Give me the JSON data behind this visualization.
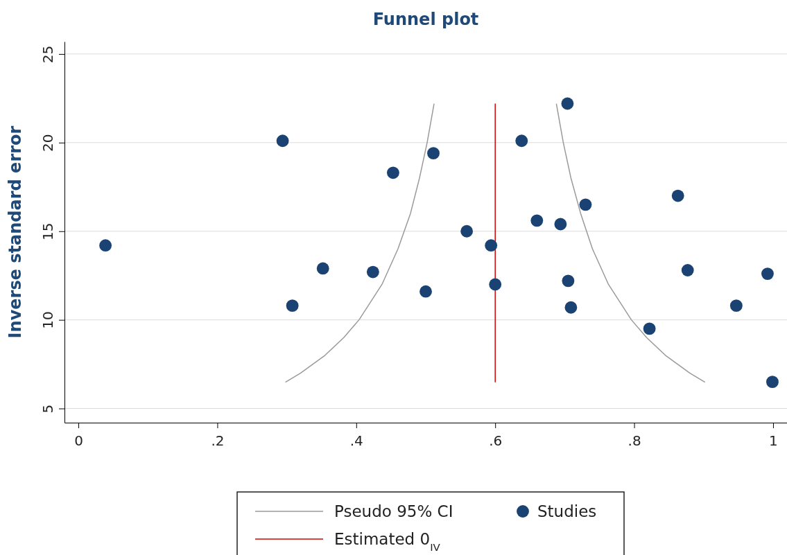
{
  "chart_data": {
    "type": "scatter",
    "title": "Funnel plot",
    "ylabel": "Inverse standard error",
    "xlim": [
      -0.02,
      1.02
    ],
    "ylim": [
      4.2,
      25.7
    ],
    "xticks": [
      0,
      {
        "value": 0.2,
        "label": ".2"
      },
      {
        "value": 0.4,
        "label": ".4"
      },
      {
        "value": 0.6,
        "label": ".6"
      },
      {
        "value": 0.8,
        "label": ".8"
      },
      1
    ],
    "yticks": [
      5,
      10,
      15,
      20,
      25
    ],
    "grid": "y",
    "legend": "bottom",
    "series": [
      {
        "type": "line",
        "marker": "none",
        "name": "Pseudo 95% CI",
        "color": "#9a9a9a",
        "x": [
          0.298,
          0.32,
          0.355,
          0.382,
          0.404,
          0.437,
          0.46,
          0.478,
          0.491,
          0.502,
          0.512,
          0.6,
          0.688,
          0.698,
          0.709,
          0.723,
          0.74,
          0.763,
          0.796,
          0.818,
          0.845,
          0.88,
          0.902
        ],
        "values": [
          6.48,
          7,
          8,
          9,
          10,
          12,
          14,
          16,
          18,
          20,
          22.2,
          null,
          22.2,
          20,
          18,
          16,
          14,
          12,
          10,
          9,
          8,
          7,
          6.48
        ]
      },
      {
        "type": "line",
        "marker": "none",
        "name": "Estimated 0$_{IV}$",
        "color": "#d40000",
        "x": [
          0.6,
          0.6
        ],
        "values": [
          6.48,
          22.2
        ]
      },
      {
        "marker": "circle",
        "name": "Studies",
        "color": "#1a4373",
        "x": [
          0.039,
          0.294,
          0.308,
          0.352,
          0.424,
          0.453,
          0.5,
          0.511,
          0.559,
          0.594,
          0.6,
          0.638,
          0.66,
          0.694,
          0.704,
          0.705,
          0.709,
          0.73,
          0.822,
          0.863,
          0.877,
          0.947,
          0.992,
          0.999
        ],
        "values": [
          14.2,
          20.1,
          10.8,
          12.9,
          12.7,
          18.3,
          11.6,
          19.4,
          15.0,
          14.2,
          12.0,
          20.1,
          15.6,
          15.4,
          22.2,
          12.2,
          10.7,
          16.5,
          9.5,
          17.0,
          12.8,
          10.8,
          12.6,
          6.5
        ]
      }
    ]
  }
}
